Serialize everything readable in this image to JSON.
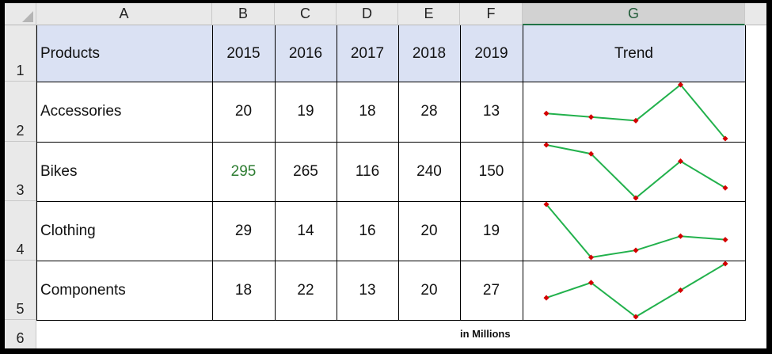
{
  "columns": [
    "A",
    "B",
    "C",
    "D",
    "E",
    "F",
    "G"
  ],
  "rows": [
    "1",
    "2",
    "3",
    "4",
    "5",
    "6"
  ],
  "header": {
    "products": "Products",
    "years": [
      "2015",
      "2016",
      "2017",
      "2018",
      "2019"
    ],
    "trend": "Trend"
  },
  "data": [
    {
      "product": "Accessories",
      "values": [
        "20",
        "19",
        "18",
        "28",
        "13"
      ]
    },
    {
      "product": "Bikes",
      "values": [
        "295",
        "265",
        "116",
        "240",
        "150"
      ]
    },
    {
      "product": "Clothing",
      "values": [
        "29",
        "14",
        "16",
        "20",
        "19"
      ]
    },
    {
      "product": "Components",
      "values": [
        "18",
        "22",
        "13",
        "20",
        "27"
      ]
    }
  ],
  "note": "in Millions",
  "colors": {
    "header_fill": "#dae1f3",
    "sparkline": "#22b14c",
    "marker": "#d40000",
    "green_text": "#2e7d32",
    "selected_column": "#217346"
  }
}
